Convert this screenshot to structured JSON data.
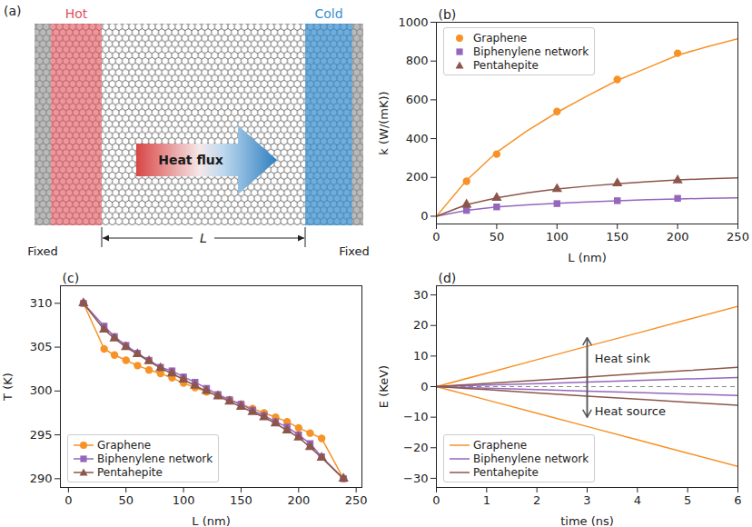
{
  "diagram": {
    "title": "(a)",
    "labels": {
      "hot": "Hot",
      "cold": "Cold",
      "flux": "Heat flux",
      "fixed_left": "Fixed",
      "fixed_right": "Fixed",
      "length": "L"
    }
  },
  "chart_data": [
    {
      "type": "scatter",
      "title": "(b)",
      "x_label": "L (nm)",
      "y_label": "k (W/(mK))",
      "xlim": [
        0,
        250
      ],
      "xticks": [
        0,
        50,
        100,
        150,
        200,
        250
      ],
      "ylim": [
        -40,
        1000
      ],
      "yticks": [
        0,
        200,
        400,
        600,
        800,
        1000
      ],
      "legend": "upper left",
      "x": [
        25,
        50,
        100,
        150,
        200
      ],
      "fit_x": [
        0,
        25,
        50,
        75,
        100,
        125,
        150,
        175,
        200,
        225,
        250
      ],
      "series": [
        {
          "name": "Graphene",
          "color": "#f79226",
          "marker": "circle",
          "values": [
            180,
            320,
            540,
            705,
            840
          ],
          "fit": [
            0,
            185,
            330,
            440,
            535,
            620,
            700,
            765,
            830,
            875,
            915
          ]
        },
        {
          "name": "Biphenylene network",
          "color": "#9467bd",
          "marker": "square",
          "values": [
            30,
            48,
            65,
            80,
            92
          ],
          "fit": [
            0,
            30,
            48,
            58,
            67,
            74,
            80,
            85,
            89,
            92,
            95
          ]
        },
        {
          "name": "Pentahepite",
          "color": "#8c564b",
          "marker": "triangle",
          "values": [
            60,
            95,
            140,
            170,
            185
          ],
          "fit": [
            0,
            60,
            95,
            120,
            140,
            155,
            167,
            178,
            187,
            193,
            198
          ]
        }
      ]
    },
    {
      "type": "line",
      "title": "(c)",
      "x_label": "L (nm)",
      "y_label": "T (K)",
      "xlim": [
        -7,
        255
      ],
      "xticks": [
        0,
        50,
        100,
        150,
        200,
        250
      ],
      "ylim": [
        289,
        312
      ],
      "yticks": [
        290,
        295,
        300,
        305,
        310
      ],
      "legend": "lower left",
      "x": [
        13,
        31,
        40,
        50,
        60,
        70,
        80,
        90,
        100,
        110,
        120,
        130,
        140,
        150,
        160,
        170,
        180,
        190,
        200,
        210,
        220,
        239
      ],
      "series": [
        {
          "name": "Graphene",
          "color": "#f79226",
          "marker": "circle",
          "values": [
            310,
            304.8,
            304.1,
            303.5,
            302.9,
            302.4,
            302,
            301.5,
            300.9,
            300.4,
            299.9,
            299.5,
            299,
            298.5,
            298,
            297.5,
            297,
            296.5,
            295.8,
            295.2,
            294.6,
            290
          ]
        },
        {
          "name": "Biphenylene network",
          "color": "#9467bd",
          "marker": "square",
          "values": [
            310,
            307.4,
            306.2,
            305.2,
            304.3,
            303.5,
            302.7,
            302.3,
            301.6,
            301,
            300.3,
            299.6,
            299,
            298.5,
            297.8,
            297.2,
            296.5,
            295.9,
            295,
            294,
            292.5,
            290
          ]
        },
        {
          "name": "Pentahepite",
          "color": "#8c564b",
          "marker": "triangle",
          "values": [
            310,
            307,
            306,
            305,
            304.2,
            303.4,
            302.6,
            302,
            301.3,
            300.6,
            300,
            299.4,
            298.8,
            298.2,
            297.6,
            297,
            296.3,
            295.5,
            294.7,
            293.6,
            292.4,
            290
          ]
        }
      ]
    },
    {
      "type": "line",
      "title": "(d)",
      "x_label": "time (ns)",
      "y_label": "E (KeV)",
      "xlim": [
        0,
        6
      ],
      "xticks": [
        0,
        1,
        2,
        3,
        4,
        5,
        6
      ],
      "ylim": [
        -33,
        33
      ],
      "yticks": [
        -30,
        -20,
        -10,
        0,
        10,
        20,
        30
      ],
      "legend": "lower left",
      "reference_line": 0,
      "x": [
        0,
        1,
        2,
        3,
        4,
        5,
        6
      ],
      "series": [
        {
          "name": "Graphene",
          "color": "#f79226",
          "values": [
            0,
            4.4,
            8.8,
            13.2,
            17.5,
            21.9,
            26.3
          ],
          "source_values": [
            0,
            -4.35,
            -8.7,
            -13.05,
            -17.4,
            -21.75,
            -26.1
          ]
        },
        {
          "name": "Biphenylene network",
          "color": "#9467bd",
          "values": [
            0,
            0.5,
            1.0,
            1.5,
            2.0,
            2.5,
            3.0
          ],
          "source_values": [
            0,
            -0.5,
            -1.0,
            -1.45,
            -1.95,
            -2.45,
            -2.9
          ]
        },
        {
          "name": "Pentahepite",
          "color": "#8c564b",
          "values": [
            0,
            1.05,
            2.1,
            3.15,
            4.2,
            5.25,
            6.3
          ],
          "source_values": [
            0,
            -1.0,
            -2.05,
            -3.1,
            -4.1,
            -5.1,
            -6.1
          ]
        }
      ],
      "annotations": [
        {
          "text": "Heat sink",
          "x": 3.15,
          "y": 9
        },
        {
          "text": "Heat source",
          "x": 3.15,
          "y": -8
        }
      ],
      "arrow": {
        "x": 3,
        "y": [
          -10,
          16
        ]
      }
    }
  ]
}
